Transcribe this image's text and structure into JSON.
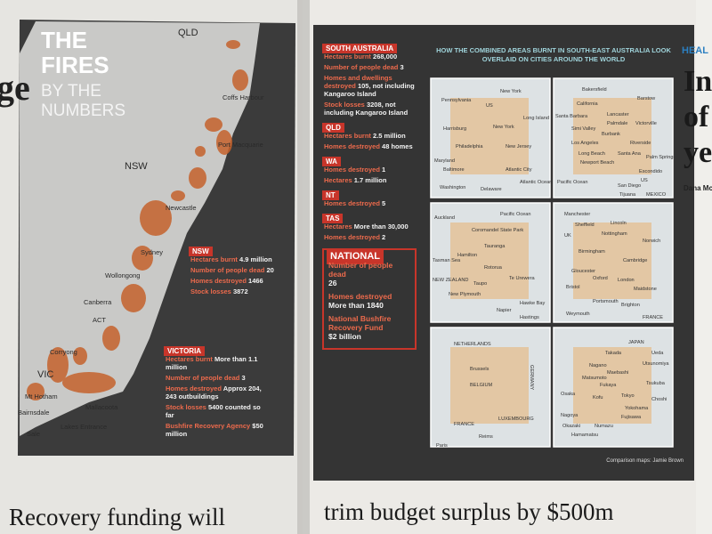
{
  "left_page": {
    "edge_text": "ge",
    "headline": "Recovery funding will",
    "infographic": {
      "title_lines": [
        "THE",
        "FIRES"
      ],
      "subtitle_lines": [
        "BY THE",
        "NUMBERS"
      ],
      "map_labels": [
        "QLD",
        "Coffs Harbour",
        "NSW",
        "Port Macquarie",
        "Newcastle",
        "Sydney",
        "Wollongong",
        "Canberra",
        "ACT",
        "VIC",
        "Corryong",
        "Mt Hotham",
        "Bairnsdale",
        "Mallacoota",
        "Sale",
        "Lakes Entrance"
      ],
      "states": [
        {
          "name": "NSW",
          "items": [
            {
              "label": "Hectares burnt",
              "value": "4.9 million"
            },
            {
              "label": "Number of people dead",
              "value": "20"
            },
            {
              "label": "Homes destroyed",
              "value": "1466"
            },
            {
              "label": "Stock losses",
              "value": "3872"
            }
          ]
        },
        {
          "name": "VICTORIA",
          "items": [
            {
              "label": "Hectares burnt",
              "value": "More than 1.1 million"
            },
            {
              "label": "Number of people dead",
              "value": "3"
            },
            {
              "label": "Homes destroyed",
              "value": "Approx 204, 243 outbuildings"
            },
            {
              "label": "Stock losses",
              "value": "5400 counted so far"
            },
            {
              "label": "Bushfire Recovery Agency",
              "value": "$50 million"
            }
          ]
        }
      ]
    }
  },
  "right_page": {
    "states": [
      {
        "name": "SOUTH AUSTRALIA",
        "items": [
          {
            "label": "Hectares burnt",
            "value": "268,000"
          },
          {
            "label": "Number of people dead",
            "value": "3"
          },
          {
            "label": "Homes and dwellings destroyed",
            "value": "105, not including Kangaroo Island"
          },
          {
            "label": "Stock losses",
            "value": "3208, not including Kangaroo Island"
          }
        ]
      },
      {
        "name": "QLD",
        "items": [
          {
            "label": "Hectares burnt",
            "value": "2.5 million"
          },
          {
            "label": "Homes destroyed",
            "value": "48 homes"
          }
        ]
      },
      {
        "name": "WA",
        "items": [
          {
            "label": "Homes destroyed",
            "value": "1"
          },
          {
            "label": "Hectares",
            "value": "1.7 million"
          }
        ]
      },
      {
        "name": "NT",
        "items": [
          {
            "label": "Homes destroyed",
            "value": "5"
          }
        ]
      },
      {
        "name": "TAS",
        "items": [
          {
            "label": "Hectares",
            "value": "More than 30,000"
          },
          {
            "label": "Homes destroyed",
            "value": "2"
          }
        ]
      }
    ],
    "national": {
      "name": "NATIONAL",
      "items": [
        {
          "label": "Number of people dead",
          "value": "26"
        },
        {
          "label": "Homes destroyed",
          "value": "More than 1840"
        },
        {
          "label": "National Bushfire Recovery Fund",
          "value": "$2 billion"
        }
      ]
    },
    "maps": {
      "heading": "HOW THE COMBINED AREAS BURNT IN SOUTH-EAST AUSTRALIA LOOK OVERLAID ON CITIES AROUND THE WORLD",
      "panels": [
        {
          "labels": [
            "Pennsylvania",
            "New York",
            "US",
            "New York",
            "Long Island",
            "Harrisburg",
            "Philadelphia",
            "New Jersey",
            "Maryland",
            "Baltimore",
            "Atlantic City",
            "Washington",
            "Delaware",
            "Atlantic Ocean"
          ]
        },
        {
          "labels": [
            "Bakersfield",
            "California",
            "Barstow",
            "Santa Barbara",
            "Lancaster",
            "Palmdale",
            "Victorville",
            "Simi Valley",
            "Burbank",
            "Los Angeles",
            "Riverside",
            "Long Beach",
            "Santa Ana",
            "Palm Springs",
            "Newport Beach",
            "Escondido",
            "US",
            "Pacific Ocean",
            "San Diego",
            "Tijuana",
            "MEXICO"
          ]
        },
        {
          "labels": [
            "Auckland",
            "Pacific Ocean",
            "Coromandel State Park",
            "Tauranga",
            "Hamilton",
            "Rotorua",
            "Tasman Sea",
            "NEW ZEALAND",
            "Taupo",
            "Te Urewera",
            "New Plymouth",
            "Napier",
            "Hawke Bay",
            "Hastings"
          ]
        },
        {
          "labels": [
            "Manchester",
            "Sheffield",
            "Lincoln",
            "UK",
            "Nottingham",
            "Norwich",
            "Birmingham",
            "Cambridge",
            "Gloucester",
            "Oxford",
            "London",
            "Bristol",
            "Maidstone",
            "Portsmouth",
            "Brighton",
            "Weymouth",
            "FRANCE"
          ]
        },
        {
          "labels": [
            "NETHERLANDS",
            "Brussels",
            "BELGIUM",
            "GERMANY",
            "LUXEMBOURG",
            "FRANCE",
            "Reims",
            "Paris"
          ]
        },
        {
          "labels": [
            "JAPAN",
            "Takada",
            "Ueda",
            "Nagano",
            "Utsunomiya",
            "Maebashi",
            "Matsumoto",
            "Fukaya",
            "Tsukuba",
            "Osaka",
            "Kofu",
            "Tokyo",
            "Choshi",
            "Yokohama",
            "Nagoya",
            "Fujisawa",
            "Okazaki",
            "Numazu",
            "Hamamatsu"
          ]
        }
      ],
      "credit": "Comparison maps: Jamie Brown"
    },
    "headline": "trim budget surplus by $500m",
    "side_column": {
      "section": "HEAL",
      "headline_lines": [
        "In",
        "of",
        "ye"
      ],
      "byline": "Dana Mc"
    }
  }
}
